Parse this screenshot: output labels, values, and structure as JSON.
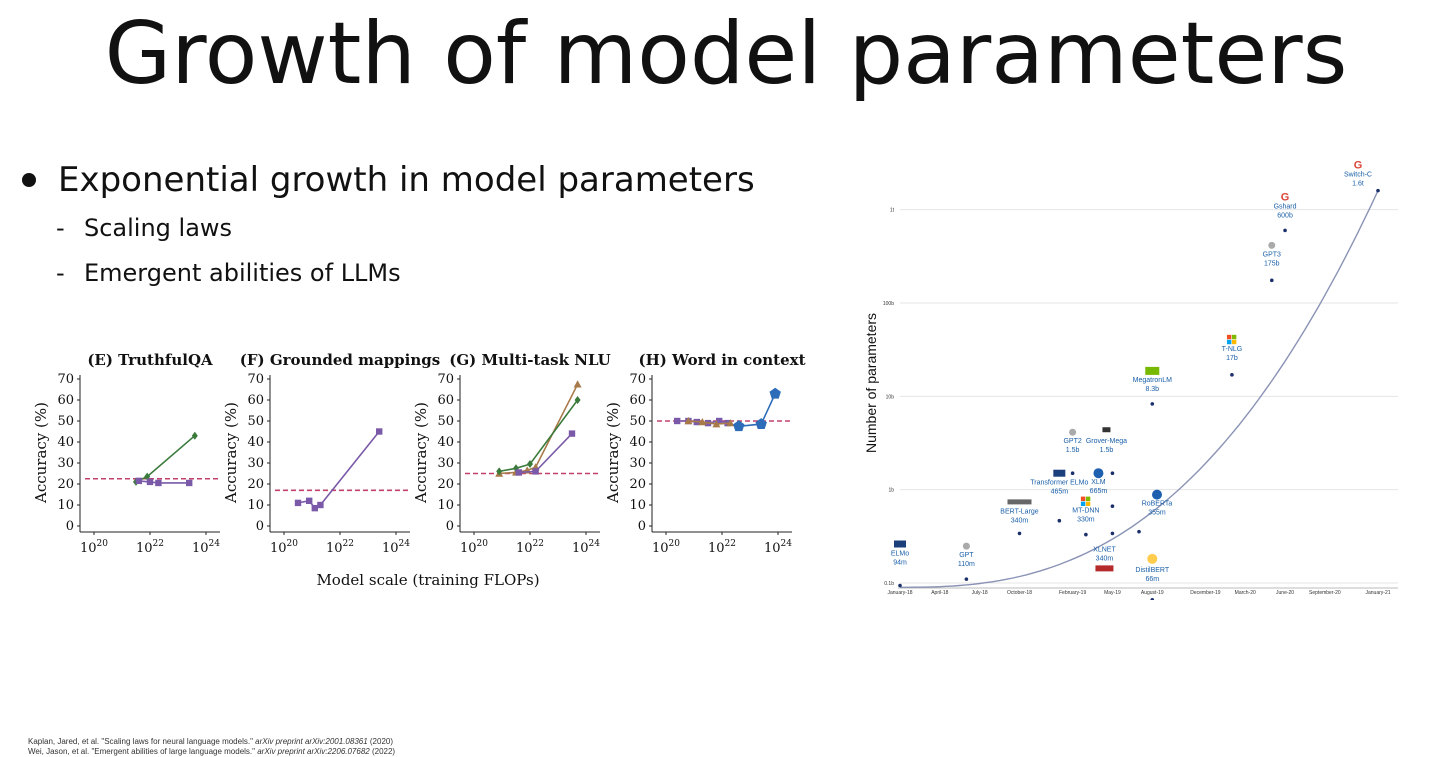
{
  "slide": {
    "title": "Growth of model parameters",
    "bullet": "Exponential growth in model parameters",
    "sub_bullets": [
      "Scaling laws",
      "Emergent abilities of LLMs"
    ],
    "references": [
      {
        "text": "Kaplan, Jared, et al. \"Scaling laws for neural language models.\" ",
        "venue": "arXiv preprint arXiv:2001.08361",
        "year": " (2020)"
      },
      {
        "text": "Wei, Jason, et al. \"Emergent abilities of large language models.\" ",
        "venue": "arXiv preprint arXiv:2206.07682",
        "year": " (2022)"
      }
    ]
  },
  "chart_data": [
    {
      "type": "line",
      "title": "(E) TruthfulQA",
      "xlabel": "Model scale (training FLOPs)",
      "ylabel": "Accuracy (%)",
      "x_scale": "log",
      "xlim_exp": [
        19.5,
        24.5
      ],
      "ylim": [
        0,
        70
      ],
      "yticks": [
        0,
        10,
        20,
        30,
        40,
        50,
        60,
        70
      ],
      "xtick_labels": [
        "10^20",
        "10^22",
        "10^24"
      ],
      "baseline": 22.5,
      "series": [
        {
          "color": "#3a7a3a",
          "marker": "diamond",
          "log10_x": [
            21.5,
            21.9,
            23.6
          ],
          "y": [
            21,
            23.5,
            43
          ]
        },
        {
          "color": "#7a5aa8",
          "marker": "square",
          "log10_x": [
            21.6,
            22.0,
            22.3,
            23.4
          ],
          "y": [
            21.5,
            21,
            20.5,
            20.5
          ]
        }
      ]
    },
    {
      "type": "line",
      "title": "(F) Grounded mappings",
      "ylabel": "Accuracy (%)",
      "x_scale": "log",
      "xlim_exp": [
        19.5,
        24.5
      ],
      "ylim": [
        0,
        70
      ],
      "yticks": [
        0,
        10,
        20,
        30,
        40,
        50,
        60,
        70
      ],
      "xtick_labels": [
        "10^20",
        "10^22",
        "10^24"
      ],
      "baseline": 17,
      "series": [
        {
          "color": "#7a5aa8",
          "marker": "square",
          "log10_x": [
            20.5,
            20.9,
            21.1,
            21.3,
            23.4
          ],
          "y": [
            11,
            12,
            8.5,
            10,
            45
          ]
        }
      ]
    },
    {
      "type": "line",
      "title": "(G) Multi-task NLU",
      "ylabel": "Accuracy (%)",
      "x_scale": "log",
      "xlim_exp": [
        19.5,
        24.5
      ],
      "ylim": [
        0,
        70
      ],
      "yticks": [
        0,
        10,
        20,
        30,
        40,
        50,
        60,
        70
      ],
      "xtick_labels": [
        "10^20",
        "10^22",
        "10^24"
      ],
      "baseline": 25,
      "series": [
        {
          "color": "#a87a4a",
          "marker": "triangle",
          "log10_x": [
            20.9,
            21.5,
            21.9,
            22.2,
            23.7
          ],
          "y": [
            25,
            25.5,
            26.5,
            28,
            67.5
          ]
        },
        {
          "color": "#3a7a3a",
          "marker": "diamond",
          "log10_x": [
            20.9,
            21.5,
            22.0,
            23.7
          ],
          "y": [
            26,
            27.5,
            29.5,
            60
          ]
        },
        {
          "color": "#7a5aa8",
          "marker": "square",
          "log10_x": [
            21.6,
            22.2,
            23.5
          ],
          "y": [
            25.5,
            26,
            44
          ]
        }
      ]
    },
    {
      "type": "line",
      "title": "(H) Word in context",
      "ylabel": "Accuracy (%)",
      "x_scale": "log",
      "xlim_exp": [
        19.5,
        24.5
      ],
      "ylim": [
        0,
        70
      ],
      "yticks": [
        0,
        10,
        20,
        30,
        40,
        50,
        60,
        70
      ],
      "xtick_labels": [
        "10^20",
        "10^22",
        "10^24"
      ],
      "baseline": 50,
      "series": [
        {
          "color": "#7a5aa8",
          "marker": "square",
          "log10_x": [
            20.4,
            20.8,
            21.1,
            21.5,
            21.9,
            22.2
          ],
          "y": [
            50,
            50,
            49.5,
            49,
            50,
            49
          ]
        },
        {
          "color": "#a87a4a",
          "marker": "triangle",
          "log10_x": [
            20.8,
            21.3,
            21.8,
            22.3
          ],
          "y": [
            50,
            49.5,
            48.5,
            49
          ]
        },
        {
          "color": "#2c6cb8",
          "marker": "pentagon",
          "log10_x": [
            22.6,
            23.4,
            23.9
          ],
          "y": [
            47.5,
            48.5,
            63
          ]
        }
      ]
    },
    {
      "type": "scatter",
      "ylabel": "Number of parameters",
      "y_scale": "log",
      "yticks": [
        "0.1b",
        "1b",
        "10b",
        "100b",
        "1t"
      ],
      "xticks": [
        "January-18",
        "April-18",
        "July-18",
        "October-18",
        "February-19",
        "May-19",
        "August-19",
        "December-19",
        "March-20",
        "June-20",
        "September-20",
        "January-21"
      ],
      "grid": true,
      "trend": "exponential",
      "points": [
        {
          "name": "ELMo",
          "value": "94m",
          "params_b": 0.094,
          "date": "January-18",
          "logo": "AI2"
        },
        {
          "name": "GPT",
          "value": "110m",
          "params_b": 0.11,
          "date": "June-18",
          "logo": "OpenAI"
        },
        {
          "name": "BERT-Large",
          "value": "340m",
          "params_b": 0.34,
          "date": "October-18",
          "logo": "Google AI"
        },
        {
          "name": "Transformer ELMo",
          "value": "465m",
          "params_b": 0.465,
          "date": "January-19",
          "logo": "AI2"
        },
        {
          "name": "GPT2",
          "value": "1.5b",
          "params_b": 1.5,
          "date": "February-19",
          "logo": "OpenAI"
        },
        {
          "name": "MT-DNN",
          "value": "330m",
          "params_b": 0.33,
          "date": "March-19",
          "logo": "Microsoft"
        },
        {
          "name": "XLM",
          "value": "665m",
          "params_b": 0.665,
          "date": "May-19",
          "logo": "Facebook"
        },
        {
          "name": "Grover-Mega",
          "value": "1.5b",
          "params_b": 1.5,
          "date": "May-19",
          "logo": "W"
        },
        {
          "name": "XLNET",
          "value": "340m",
          "params_b": 0.34,
          "date": "May-19",
          "logo": "Carnegie Mellon University"
        },
        {
          "name": "RoBERTa",
          "value": "355m",
          "params_b": 0.355,
          "date": "July-19",
          "logo": "Facebook"
        },
        {
          "name": "MegatronLM",
          "value": "8.3b",
          "params_b": 8.3,
          "date": "August-19",
          "logo": "NVIDIA"
        },
        {
          "name": "DistilBERT",
          "value": "66m",
          "params_b": 0.066,
          "date": "August-19",
          "logo": "Hugging Face"
        },
        {
          "name": "T-NLG",
          "value": "17b",
          "params_b": 17,
          "date": "February-20",
          "logo": "Microsoft"
        },
        {
          "name": "GPT3",
          "value": "175b",
          "params_b": 175,
          "date": "May-20",
          "logo": "OpenAI"
        },
        {
          "name": "Gshard",
          "value": "600b",
          "params_b": 600,
          "date": "June-20",
          "logo": "Google"
        },
        {
          "name": "Switch-C",
          "value": "1.6t",
          "params_b": 1600,
          "date": "January-21",
          "logo": "Google"
        }
      ]
    }
  ]
}
